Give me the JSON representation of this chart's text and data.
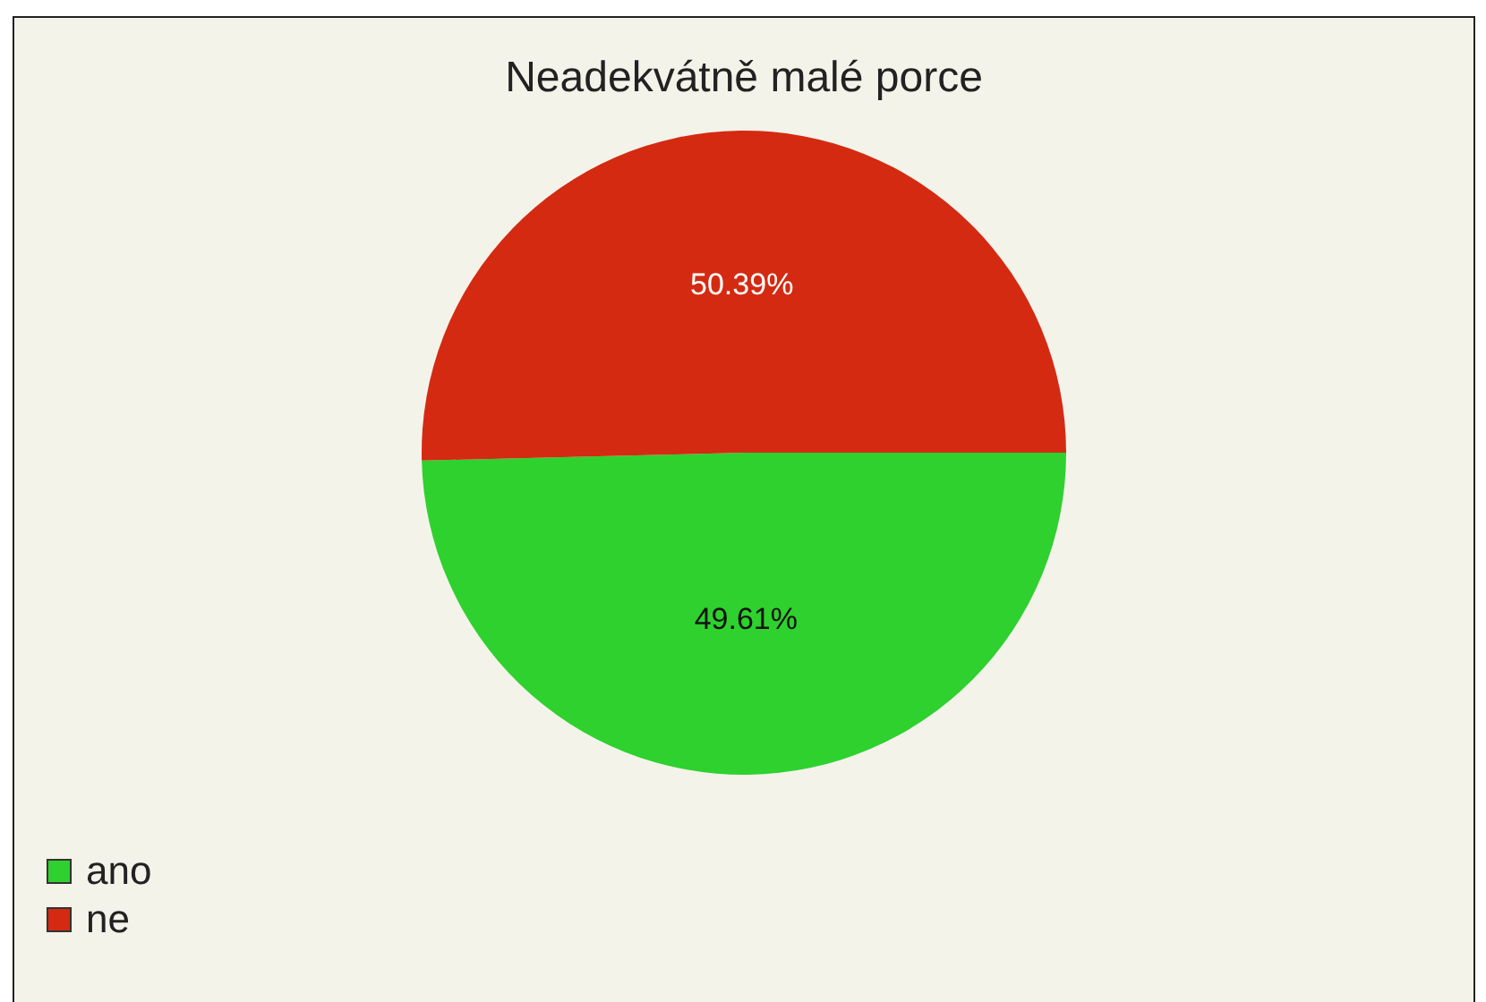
{
  "chart_data": {
    "type": "pie",
    "title": "Neadekvátně malé porce",
    "categories": [
      "ano",
      "ne"
    ],
    "values": [
      49.61,
      50.39
    ],
    "colors": [
      "#2ed12e",
      "#d42a12"
    ],
    "value_labels": [
      "49.61%",
      "50.39%"
    ],
    "legend": "bottom left"
  }
}
